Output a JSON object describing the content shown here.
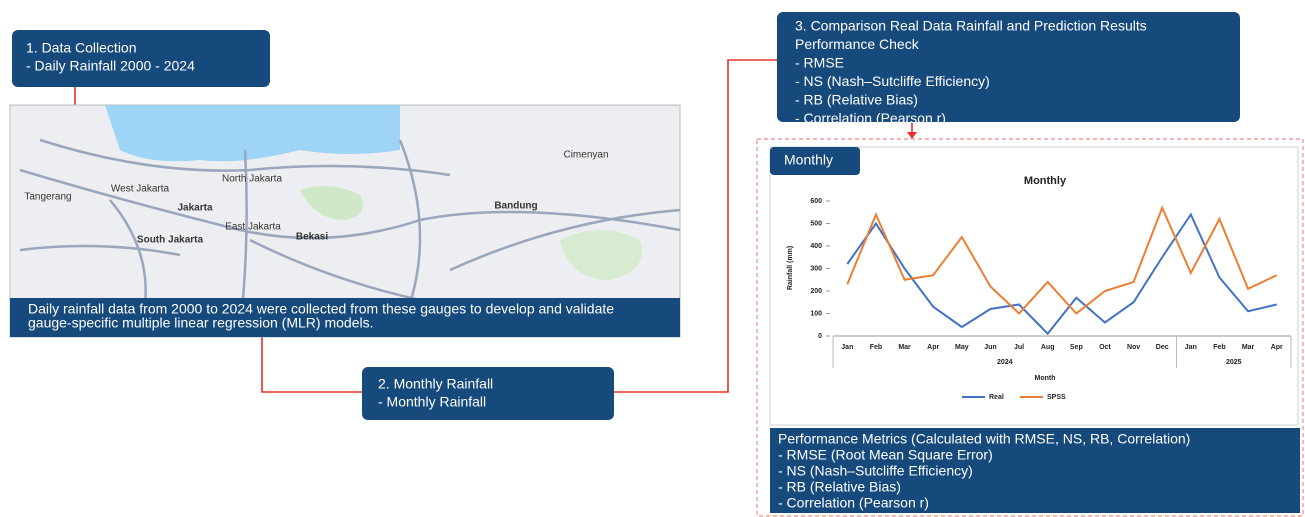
{
  "box1": {
    "lines": [
      "1. Data Collection",
      "- Daily Rainfall 2000 - 2024"
    ]
  },
  "box2": {
    "lines": [
      "2. Monthly Rainfall",
      "- Monthly Rainfall"
    ]
  },
  "box3": {
    "lines": [
      "3. Comparison Real Data Rainfall and Prediction Results",
      "Performance Check",
      "- RMSE",
      "- NS (Nash–Sutcliffe Efficiency)",
      "- RB (Relative Bias)",
      "- Correlation (Pearson r)"
    ]
  },
  "map": {
    "labels": [
      "Jakarta",
      "Bandung",
      "South Jakarta",
      "Bekasi",
      "Tangerang",
      "West Jakarta",
      "North Jakarta",
      "East Jakarta",
      "Cimenyan"
    ],
    "caption": [
      "Daily rainfall data from 2000 to 2024 were collected from these gauges to develop and validate",
      "gauge-specific multiple linear regression (MLR) models."
    ]
  },
  "panel": {
    "tab": "Monthly"
  },
  "metrics": {
    "lines": [
      "Performance Metrics (Calculated with RMSE, NS, RB, Correlation)",
      "- RMSE (Root Mean Square Error)",
      "- NS (Nash–Sutcliffe Efficiency)",
      "- RB (Relative Bias)",
      "- Correlation (Pearson r)"
    ]
  },
  "chart_data": {
    "type": "line",
    "title": "Monthly",
    "x_label": "Month",
    "y_label": "Rainfall (mm)",
    "groups": [
      {
        "label": "2024",
        "categories": [
          "Jan",
          "Feb",
          "Mar",
          "Apr",
          "May",
          "Jun",
          "Jul",
          "Aug",
          "Sep",
          "Oct",
          "Nov",
          "Dec"
        ]
      },
      {
        "label": "2025",
        "categories": [
          "Jan",
          "Feb",
          "Mar",
          "Apr"
        ]
      }
    ],
    "series": [
      {
        "name": "Real",
        "color": "#4472c4",
        "values": [
          320,
          500,
          300,
          130,
          40,
          120,
          140,
          10,
          170,
          60,
          150,
          350,
          540,
          260,
          110,
          140
        ]
      },
      {
        "name": "SPSS",
        "color": "#ed7d31",
        "values": [
          230,
          540,
          250,
          270,
          440,
          220,
          100,
          240,
          100,
          200,
          240,
          570,
          280,
          520,
          210,
          270
        ]
      }
    ],
    "ylim": [
      0,
      600
    ],
    "yticks": [
      0,
      100,
      200,
      300,
      400,
      500,
      600
    ],
    "legend": "bottom"
  }
}
